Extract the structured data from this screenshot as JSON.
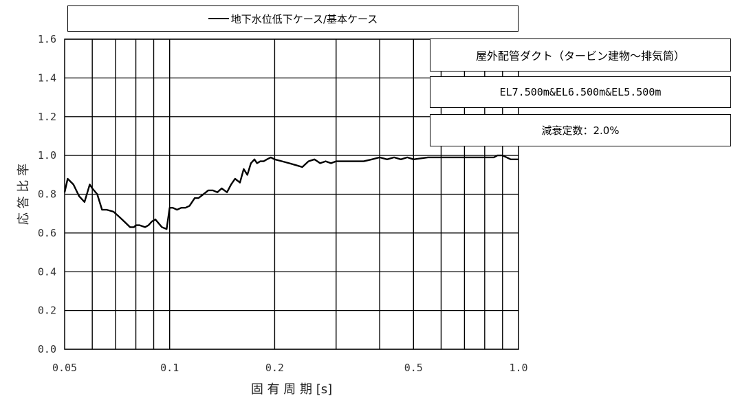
{
  "legend": {
    "label": "地下水位低下ケース/基本ケース"
  },
  "info": {
    "title": "屋外配管ダクト（タービン建物～排気筒）",
    "level": "EL7.500m&EL6.500m&EL5.500m",
    "damping": "減衰定数：2.0%"
  },
  "chart_data": {
    "type": "line",
    "xscale": "log",
    "xlim": [
      0.05,
      1.0
    ],
    "ylim": [
      0.0,
      1.6
    ],
    "xlabel": "固 有 周 期 [s]",
    "ylabel": "応 答 比 率",
    "grid": true,
    "legend_position": "top",
    "x_ticks": [
      {
        "value": 0.05,
        "label": "0.05"
      },
      {
        "value": 0.1,
        "label": "0.1"
      },
      {
        "value": 0.2,
        "label": "0.2"
      },
      {
        "value": 0.5,
        "label": "0.5"
      },
      {
        "value": 1.0,
        "label": "1.0"
      }
    ],
    "y_ticks": [
      {
        "value": 0.0,
        "label": "0.0"
      },
      {
        "value": 0.2,
        "label": "0.2"
      },
      {
        "value": 0.4,
        "label": "0.4"
      },
      {
        "value": 0.6,
        "label": "0.6"
      },
      {
        "value": 0.8,
        "label": "0.8"
      },
      {
        "value": 1.0,
        "label": "1.0"
      },
      {
        "value": 1.2,
        "label": "1.2"
      },
      {
        "value": 1.4,
        "label": "1.4"
      },
      {
        "value": 1.6,
        "label": "1.6"
      }
    ],
    "x_gridlines": [
      0.06,
      0.07,
      0.08,
      0.09,
      0.1,
      0.2,
      0.3,
      0.4,
      0.5,
      0.6,
      0.7,
      0.8,
      0.9
    ],
    "series": [
      {
        "name": "地下水位低下ケース/基本ケース",
        "color": "#000000",
        "x": [
          0.05,
          0.051,
          0.053,
          0.055,
          0.057,
          0.059,
          0.06,
          0.062,
          0.064,
          0.066,
          0.069,
          0.071,
          0.073,
          0.075,
          0.077,
          0.079,
          0.08,
          0.082,
          0.085,
          0.087,
          0.089,
          0.091,
          0.093,
          0.095,
          0.098,
          0.1,
          0.102,
          0.105,
          0.108,
          0.111,
          0.114,
          0.118,
          0.121,
          0.125,
          0.129,
          0.133,
          0.137,
          0.141,
          0.146,
          0.15,
          0.154,
          0.159,
          0.163,
          0.167,
          0.171,
          0.175,
          0.178,
          0.182,
          0.186,
          0.19,
          0.195,
          0.2,
          0.21,
          0.22,
          0.23,
          0.24,
          0.25,
          0.26,
          0.27,
          0.28,
          0.29,
          0.3,
          0.32,
          0.34,
          0.36,
          0.38,
          0.4,
          0.42,
          0.44,
          0.46,
          0.48,
          0.5,
          0.55,
          0.6,
          0.65,
          0.7,
          0.75,
          0.8,
          0.85,
          0.87,
          0.9,
          0.95,
          1.0
        ],
        "y": [
          0.81,
          0.88,
          0.85,
          0.79,
          0.76,
          0.85,
          0.83,
          0.8,
          0.72,
          0.72,
          0.71,
          0.69,
          0.67,
          0.65,
          0.63,
          0.63,
          0.64,
          0.64,
          0.63,
          0.64,
          0.66,
          0.67,
          0.65,
          0.63,
          0.62,
          0.73,
          0.73,
          0.72,
          0.73,
          0.73,
          0.74,
          0.78,
          0.78,
          0.8,
          0.82,
          0.82,
          0.81,
          0.83,
          0.81,
          0.85,
          0.88,
          0.86,
          0.93,
          0.9,
          0.96,
          0.98,
          0.96,
          0.97,
          0.97,
          0.98,
          0.99,
          0.98,
          0.97,
          0.96,
          0.95,
          0.94,
          0.97,
          0.98,
          0.96,
          0.97,
          0.96,
          0.97,
          0.97,
          0.97,
          0.97,
          0.98,
          0.99,
          0.98,
          0.99,
          0.98,
          0.99,
          0.98,
          0.99,
          0.99,
          0.99,
          0.99,
          0.99,
          0.99,
          0.99,
          1.0,
          1.0,
          0.98,
          0.98
        ]
      }
    ]
  }
}
